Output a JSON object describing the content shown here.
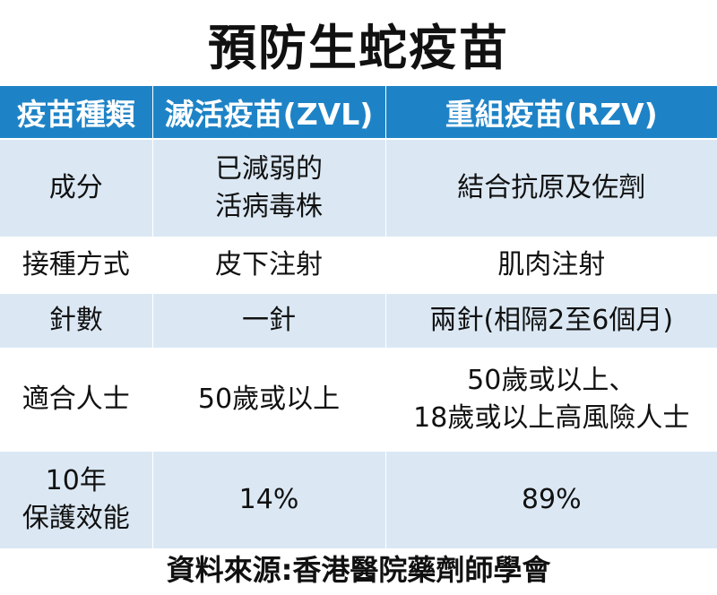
{
  "title": "預防生蛇疫苗",
  "table": {
    "headers": [
      "疫苗種類",
      "滅活疫苗(ZVL)",
      "重組疫苗(RZV)"
    ],
    "rows": [
      {
        "label": "成分",
        "zvl": "已減弱的\n活病毒株",
        "rzv": "結合抗原及佐劑"
      },
      {
        "label": "接種方式",
        "zvl": "皮下注射",
        "rzv": "肌肉注射"
      },
      {
        "label": "針數",
        "zvl": "一針",
        "rzv": "兩針(相隔2至6個月)"
      },
      {
        "label": "適合人士",
        "zvl": "50歲或以上",
        "rzv": "50歲或以上、\n18歲或以上高風險人士"
      },
      {
        "label": "10年\n保護效能",
        "zvl": "14%",
        "rzv": "89%"
      }
    ]
  },
  "source": "資料來源:香港醫院藥劑師學會",
  "colors": {
    "header_bg": "#1e83c6",
    "shaded_row": "#dbe8f4"
  }
}
